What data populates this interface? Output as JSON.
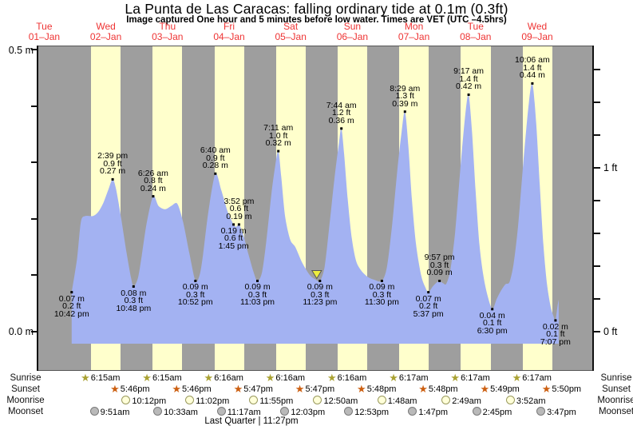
{
  "title": "La Punta de Las Caracas: falling  ordinary tide at 0.1m (0.3ft)",
  "subtitle": "Image captured One hour and 5 minutes before low water. Times are VET (UTC –4.5hrs)",
  "footer": "Last Quarter | 11:27pm",
  "axes": {
    "left_top": "0.5 m",
    "left_bottom": "0.0 m",
    "right_top": "1 ft",
    "right_bottom": "0 ft"
  },
  "row_labels": {
    "sunrise": "Sunrise",
    "sunset": "Sunset",
    "moonrise": "Moonrise",
    "moonset": "Moonset"
  },
  "chart_data": {
    "type": "area",
    "title": "La Punta de Las Caracas: falling  ordinary tide at 0.1m (0.3ft)",
    "ylabel_left": "meters",
    "ylabel_right": "feet",
    "ylim_m": [
      0,
      0.5
    ],
    "grid": false,
    "colors": {
      "night_band": "#9e9e9e",
      "day_band": "#ffffcc",
      "tide_fill": "#a3b2f2",
      "day_label_red": "#ee3333",
      "sunrise_star": "#aaa233",
      "sunset_star": "#cc5f11",
      "moonrise_fill": "#ffffd9",
      "moonrise_border": "#99995e",
      "moonset_fill": "#b9b9b9",
      "moonset_border": "#7a7a7a",
      "marker_yellow": "#eded3e"
    },
    "days": [
      {
        "dow": "Tue",
        "date": "01–Jan"
      },
      {
        "dow": "Wed",
        "date": "02–Jan"
      },
      {
        "dow": "Thu",
        "date": "03–Jan"
      },
      {
        "dow": "Fri",
        "date": "04–Jan"
      },
      {
        "dow": "Sat",
        "date": "05–Jan"
      },
      {
        "dow": "Sun",
        "date": "06–Jan"
      },
      {
        "dow": "Mon",
        "date": "07–Jan"
      },
      {
        "dow": "Tue",
        "date": "08–Jan"
      },
      {
        "dow": "Wed",
        "date": "09–Jan"
      }
    ],
    "tide_events": [
      {
        "day": 0,
        "time": "10:42 pm",
        "type": "low",
        "height_m": 0.07,
        "height_ft": 0.2,
        "side": "below",
        "lines": [
          "0.07 m",
          "0.2 ft",
          "10:42 pm"
        ]
      },
      {
        "day": 1,
        "time": "2:39 pm",
        "type": "high",
        "height_m": 0.27,
        "height_ft": 0.9,
        "side": "above",
        "lines": [
          "2:39 pm",
          "0.9 ft",
          "0.27 m"
        ]
      },
      {
        "day": 1,
        "time": "10:48 pm",
        "type": "low",
        "height_m": 0.08,
        "height_ft": 0.3,
        "side": "below",
        "lines": [
          "0.08 m",
          "0.3 ft",
          "10:48 pm"
        ]
      },
      {
        "day": 2,
        "time": "6:26 am",
        "type": "high",
        "height_m": 0.24,
        "height_ft": 0.8,
        "side": "above",
        "lines": [
          "6:26 am",
          "0.8 ft",
          "0.24 m"
        ]
      },
      {
        "day": 2,
        "time": "10:52 pm",
        "type": "low",
        "height_m": 0.09,
        "height_ft": 0.3,
        "side": "below",
        "lines": [
          "0.09 m",
          "0.3 ft",
          "10:52 pm"
        ]
      },
      {
        "day": 3,
        "time": "6:40 am",
        "type": "high",
        "height_m": 0.28,
        "height_ft": 0.9,
        "side": "above",
        "lines": [
          "6:40 am",
          "0.9 ft",
          "0.28 m"
        ]
      },
      {
        "day": 3,
        "time": "1:45 pm",
        "type": "low",
        "height_m": 0.19,
        "height_ft": 0.6,
        "side": "below",
        "lines": [
          "0.19 m",
          "0.6 ft",
          "1:45 pm"
        ]
      },
      {
        "day": 3,
        "time": "3:52 pm",
        "type": "high",
        "height_m": 0.19,
        "height_ft": 0.6,
        "side": "above",
        "lines": [
          "3:52 pm",
          "0.6 ft",
          "0.19 m"
        ]
      },
      {
        "day": 3,
        "time": "11:03 pm",
        "type": "low",
        "height_m": 0.09,
        "height_ft": 0.3,
        "side": "below",
        "lines": [
          "0.09 m",
          "0.3 ft",
          "11:03 pm"
        ]
      },
      {
        "day": 4,
        "time": "7:11 am",
        "type": "high",
        "height_m": 0.32,
        "height_ft": 1.0,
        "side": "above",
        "lines": [
          "7:11 am",
          "1.0 ft",
          "0.32 m"
        ]
      },
      {
        "day": 4,
        "time": "11:23 pm",
        "type": "low",
        "height_m": 0.09,
        "height_ft": 0.3,
        "side": "below",
        "marker": true,
        "lines": [
          "0.09 m",
          "0.3 ft",
          "11:23 pm"
        ]
      },
      {
        "day": 5,
        "time": "7:44 am",
        "type": "high",
        "height_m": 0.36,
        "height_ft": 1.2,
        "side": "above",
        "lines": [
          "7:44 am",
          "1.2 ft",
          "0.36 m"
        ]
      },
      {
        "day": 5,
        "time": "11:30 pm",
        "type": "low",
        "height_m": 0.09,
        "height_ft": 0.3,
        "side": "below",
        "lines": [
          "0.09 m",
          "0.3 ft",
          "11:30 pm"
        ]
      },
      {
        "day": 6,
        "time": "8:29 am",
        "type": "high",
        "height_m": 0.39,
        "height_ft": 1.3,
        "side": "above",
        "lines": [
          "8:29 am",
          "1.3 ft",
          "0.39 m"
        ]
      },
      {
        "day": 6,
        "time": "5:37 pm",
        "type": "low",
        "height_m": 0.07,
        "height_ft": 0.2,
        "side": "below",
        "lines": [
          "0.07 m",
          "0.2 ft",
          "5:37 pm"
        ]
      },
      {
        "day": 6,
        "time": "9:57 pm",
        "type": "high",
        "height_m": 0.09,
        "height_ft": 0.3,
        "side": "above",
        "lines": [
          "9:57 pm",
          "0.3 ft",
          "0.09 m"
        ]
      },
      {
        "day": 7,
        "time": "9:17 am",
        "type": "high",
        "height_m": 0.42,
        "height_ft": 1.4,
        "side": "above",
        "lines": [
          "9:17 am",
          "1.4 ft",
          "0.42 m"
        ]
      },
      {
        "day": 7,
        "time": "6:30 pm",
        "type": "low",
        "height_m": 0.04,
        "height_ft": 0.1,
        "side": "below",
        "lines": [
          "0.04 m",
          "0.1 ft",
          "6:30 pm"
        ]
      },
      {
        "day": 8,
        "time": "10:06 am",
        "type": "high",
        "height_m": 0.44,
        "height_ft": 1.4,
        "side": "above",
        "lines": [
          "10:06 am",
          "1.4 ft",
          "0.44 m"
        ]
      },
      {
        "day": 8,
        "time": "7:07 pm",
        "type": "low",
        "height_m": 0.02,
        "height_ft": 0.1,
        "side": "below",
        "lines": [
          "0.02 m",
          "0.1 ft",
          "7:07 pm"
        ]
      }
    ],
    "curve_points": [
      [
        0,
        22.7,
        0.07
      ],
      [
        1,
        0.8,
        0.13
      ],
      [
        1,
        2.3,
        0.195
      ],
      [
        1,
        4.0,
        0.205
      ],
      [
        1,
        7.0,
        0.205
      ],
      [
        1,
        9.0,
        0.212
      ],
      [
        1,
        11.0,
        0.228
      ],
      [
        1,
        13.0,
        0.252
      ],
      [
        1,
        14.65,
        0.27
      ],
      [
        1,
        16.0,
        0.252
      ],
      [
        1,
        18.0,
        0.2
      ],
      [
        1,
        20.0,
        0.142
      ],
      [
        1,
        21.8,
        0.096
      ],
      [
        1,
        22.8,
        0.08
      ],
      [
        2,
        0.5,
        0.095
      ],
      [
        2,
        2.0,
        0.135
      ],
      [
        2,
        4.0,
        0.195
      ],
      [
        2,
        6.43,
        0.24
      ],
      [
        2,
        8.5,
        0.223
      ],
      [
        2,
        11.1,
        0.217
      ],
      [
        2,
        13.5,
        0.223
      ],
      [
        2,
        15.8,
        0.227
      ],
      [
        2,
        18.0,
        0.196
      ],
      [
        2,
        20.5,
        0.14
      ],
      [
        2,
        22.87,
        0.09
      ],
      [
        3,
        0.5,
        0.1
      ],
      [
        3,
        1.8,
        0.135
      ],
      [
        3,
        4.0,
        0.215
      ],
      [
        3,
        6.67,
        0.28
      ],
      [
        3,
        9.0,
        0.25
      ],
      [
        3,
        11.5,
        0.212
      ],
      [
        3,
        13.75,
        0.19
      ],
      [
        3,
        14.8,
        0.186
      ],
      [
        3,
        15.87,
        0.19
      ],
      [
        3,
        17.5,
        0.172
      ],
      [
        3,
        19.5,
        0.138
      ],
      [
        3,
        21.5,
        0.106
      ],
      [
        3,
        23.05,
        0.09
      ],
      [
        4,
        0.8,
        0.105
      ],
      [
        4,
        2.5,
        0.16
      ],
      [
        4,
        4.5,
        0.245
      ],
      [
        4,
        6.0,
        0.295
      ],
      [
        4,
        7.18,
        0.32
      ],
      [
        4,
        8.3,
        0.275
      ],
      [
        4,
        9.8,
        0.205
      ],
      [
        4,
        11.8,
        0.163
      ],
      [
        4,
        13.8,
        0.15
      ],
      [
        4,
        16.5,
        0.122
      ],
      [
        4,
        19.5,
        0.1
      ],
      [
        4,
        21.5,
        0.093
      ],
      [
        4,
        23.38,
        0.09
      ],
      [
        5,
        1.2,
        0.115
      ],
      [
        5,
        3.0,
        0.185
      ],
      [
        5,
        5.0,
        0.27
      ],
      [
        5,
        6.8,
        0.335
      ],
      [
        5,
        7.73,
        0.36
      ],
      [
        5,
        8.8,
        0.315
      ],
      [
        5,
        10.2,
        0.235
      ],
      [
        5,
        11.8,
        0.165
      ],
      [
        5,
        13.5,
        0.125
      ],
      [
        5,
        15.5,
        0.108
      ],
      [
        5,
        18.0,
        0.097
      ],
      [
        5,
        20.5,
        0.092
      ],
      [
        5,
        23.5,
        0.09
      ],
      [
        6,
        1.5,
        0.115
      ],
      [
        6,
        3.5,
        0.19
      ],
      [
        6,
        5.5,
        0.285
      ],
      [
        6,
        7.2,
        0.355
      ],
      [
        6,
        8.48,
        0.39
      ],
      [
        6,
        9.8,
        0.33
      ],
      [
        6,
        11.2,
        0.235
      ],
      [
        6,
        12.8,
        0.155
      ],
      [
        6,
        14.8,
        0.1
      ],
      [
        6,
        16.3,
        0.08
      ],
      [
        6,
        17.62,
        0.07
      ],
      [
        6,
        19.3,
        0.08
      ],
      [
        6,
        20.8,
        0.087
      ],
      [
        6,
        21.95,
        0.09
      ],
      [
        6,
        23.3,
        0.086
      ],
      [
        7,
        0.6,
        0.085
      ],
      [
        7,
        2.2,
        0.11
      ],
      [
        7,
        4.0,
        0.175
      ],
      [
        7,
        6.0,
        0.285
      ],
      [
        7,
        8.0,
        0.385
      ],
      [
        7,
        9.28,
        0.42
      ],
      [
        7,
        10.6,
        0.355
      ],
      [
        7,
        12.0,
        0.25
      ],
      [
        7,
        13.5,
        0.155
      ],
      [
        7,
        15.0,
        0.1
      ],
      [
        7,
        16.6,
        0.065
      ],
      [
        7,
        18.5,
        0.04
      ],
      [
        7,
        20.2,
        0.058
      ],
      [
        7,
        21.8,
        0.072
      ],
      [
        7,
        23.6,
        0.084
      ],
      [
        8,
        1.2,
        0.088
      ],
      [
        8,
        2.8,
        0.12
      ],
      [
        8,
        4.6,
        0.19
      ],
      [
        8,
        6.6,
        0.3
      ],
      [
        8,
        8.6,
        0.4
      ],
      [
        8,
        10.1,
        0.44
      ],
      [
        8,
        11.6,
        0.37
      ],
      [
        8,
        13.0,
        0.26
      ],
      [
        8,
        14.4,
        0.155
      ],
      [
        8,
        15.8,
        0.085
      ],
      [
        8,
        17.2,
        0.045
      ],
      [
        8,
        18.3,
        0.028
      ],
      [
        8,
        19.12,
        0.02
      ],
      [
        8,
        19.9,
        0.045
      ],
      [
        8,
        20.35,
        0.057
      ]
    ],
    "sun": {
      "sunrise": [
        "6:15am",
        "6:15am",
        "6:16am",
        "6:16am",
        "6:16am",
        "6:17am",
        "6:17am",
        "6:17am"
      ],
      "sunset": [
        "5:46pm",
        "5:46pm",
        "5:47pm",
        "5:47pm",
        "5:48pm",
        "5:48pm",
        "5:49pm",
        "5:50pm"
      ]
    },
    "moon": {
      "moonrise": [
        [
          1,
          "10:12pm"
        ],
        [
          2,
          "11:02pm"
        ],
        [
          3,
          "11:55pm"
        ],
        [
          5,
          "12:50am"
        ],
        [
          6,
          "1:48am"
        ],
        [
          7,
          "2:49am"
        ],
        [
          8,
          "3:52am"
        ]
      ],
      "moonset": [
        [
          1,
          "9:51am"
        ],
        [
          2,
          "10:33am"
        ],
        [
          3,
          "11:17am"
        ],
        [
          4,
          "12:03pm"
        ],
        [
          5,
          "12:53pm"
        ],
        [
          6,
          "1:47pm"
        ],
        [
          7,
          "2:45pm"
        ],
        [
          8,
          "3:47pm"
        ]
      ],
      "phase": "Last Quarter | 11:27pm"
    }
  }
}
